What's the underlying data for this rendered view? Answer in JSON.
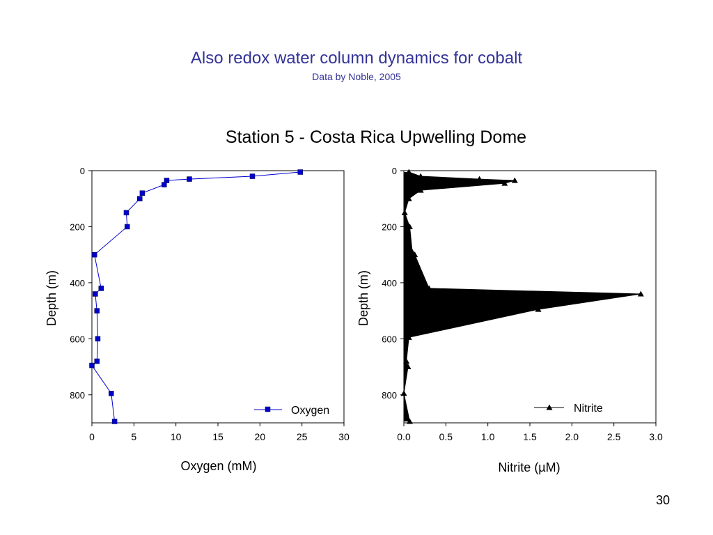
{
  "slide": {
    "title": "Also redox water column dynamics for cobalt",
    "subtitle": "Data by Noble, 2005",
    "figure_title": "Station 5 - Costa Rica Upwelling Dome",
    "page_number": "30"
  },
  "colors": {
    "title": "#333399",
    "oxygen_series": "#0000cc",
    "nitrite_series": "#000000"
  },
  "chart_data": [
    {
      "type": "line",
      "xlabel": "Oxygen (mM)",
      "ylabel": "Depth (m)",
      "xlim": [
        0,
        30
      ],
      "ylim": [
        0,
        900
      ],
      "y_inverted": true,
      "x_ticks": [
        "0",
        "5",
        "10",
        "15",
        "20",
        "25",
        "30"
      ],
      "y_ticks": [
        "0",
        "200",
        "400",
        "600",
        "800"
      ],
      "grid": false,
      "legend_position": "bottom-right",
      "marker": "square",
      "series": [
        {
          "name": "Oxygen",
          "points": [
            {
              "x": 24.8,
              "y": 5
            },
            {
              "x": 19.1,
              "y": 20
            },
            {
              "x": 11.6,
              "y": 30
            },
            {
              "x": 8.9,
              "y": 35
            },
            {
              "x": 8.6,
              "y": 50
            },
            {
              "x": 6.0,
              "y": 80
            },
            {
              "x": 5.7,
              "y": 100
            },
            {
              "x": 4.1,
              "y": 150
            },
            {
              "x": 4.2,
              "y": 200
            },
            {
              "x": 0.3,
              "y": 300
            },
            {
              "x": 1.1,
              "y": 420
            },
            {
              "x": 0.4,
              "y": 440
            },
            {
              "x": 0.6,
              "y": 500
            },
            {
              "x": 0.7,
              "y": 600
            },
            {
              "x": 0.6,
              "y": 680
            },
            {
              "x": 0.0,
              "y": 695
            },
            {
              "x": 2.3,
              "y": 795
            },
            {
              "x": 2.7,
              "y": 895
            }
          ]
        }
      ]
    },
    {
      "type": "area",
      "xlabel": "Nitrite (µM)",
      "ylabel": "Depth (m)",
      "xlim": [
        0,
        3
      ],
      "ylim": [
        0,
        900
      ],
      "y_inverted": true,
      "x_ticks": [
        "0.0",
        "0.5",
        "1.0",
        "1.5",
        "2.0",
        "2.5",
        "3.0"
      ],
      "y_ticks": [
        "0",
        "200",
        "400",
        "600",
        "800"
      ],
      "grid": false,
      "legend_position": "bottom-right",
      "marker": "triangle",
      "series": [
        {
          "name": "Nitrite",
          "points": [
            {
              "x": 0.06,
              "y": 5
            },
            {
              "x": 0.2,
              "y": 20
            },
            {
              "x": 0.9,
              "y": 30
            },
            {
              "x": 1.32,
              "y": 35
            },
            {
              "x": 1.2,
              "y": 45
            },
            {
              "x": 0.2,
              "y": 70
            },
            {
              "x": 0.06,
              "y": 100
            },
            {
              "x": 0.01,
              "y": 150
            },
            {
              "x": 0.07,
              "y": 200
            },
            {
              "x": 0.1,
              "y": 290
            },
            {
              "x": 0.13,
              "y": 300
            },
            {
              "x": 0.3,
              "y": 420
            },
            {
              "x": 2.82,
              "y": 440
            },
            {
              "x": 1.6,
              "y": 495
            },
            {
              "x": 0.06,
              "y": 595
            },
            {
              "x": 0.03,
              "y": 680
            },
            {
              "x": 0.05,
              "y": 700
            },
            {
              "x": 0.0,
              "y": 795
            },
            {
              "x": 0.07,
              "y": 895
            }
          ]
        }
      ]
    }
  ]
}
